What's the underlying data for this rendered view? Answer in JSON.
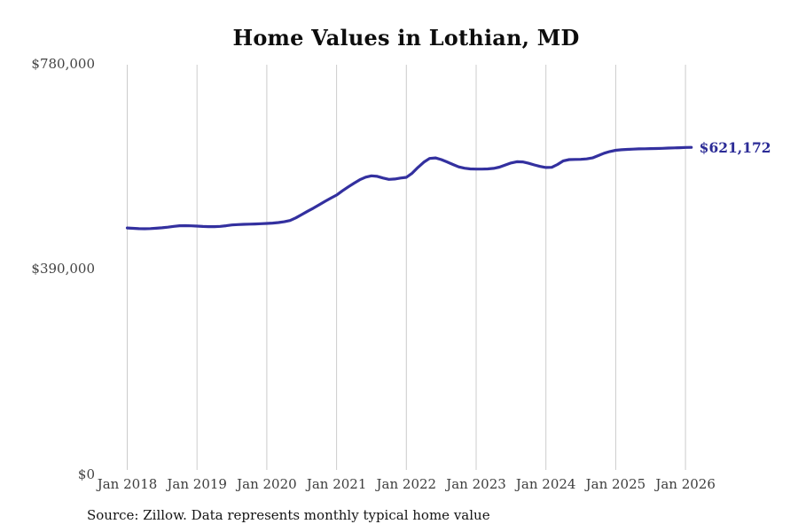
{
  "page": {
    "background_color": "#ffffff"
  },
  "colors": {
    "line": "#33309f",
    "end_label": "#2b2b96",
    "gridline": "#cccccc",
    "axis_text": "#3d3d3d",
    "title_text": "#0d0d0d"
  },
  "chart_data": {
    "type": "line",
    "title": "Home Values in Lothian, MD",
    "xlabel": "",
    "ylabel": "",
    "ylim": [
      0,
      780000
    ],
    "grid": "vertical-only",
    "legend": "none",
    "x_tick_labels": [
      "Jan 2018",
      "Jan 2019",
      "Jan 2020",
      "Jan 2021",
      "Jan 2022",
      "Jan 2023",
      "Jan 2024",
      "Jan 2025",
      "Jan 2026"
    ],
    "y_ticks": [
      {
        "label": "$780,000",
        "value": 780000
      },
      {
        "label": "$390,000",
        "value": 390000
      },
      {
        "label": "$0",
        "value": 0
      }
    ],
    "end_label": "$621,172",
    "end_value": 621172,
    "series": [
      {
        "name": "Monthly typical home value",
        "start_month": "2018-01",
        "end_month": "2026-02",
        "interval": "monthly",
        "values": [
          467800,
          467100,
          466500,
          466300,
          466700,
          467300,
          468100,
          469300,
          470800,
          472000,
          472300,
          471900,
          471300,
          470700,
          470300,
          470300,
          470900,
          472000,
          473500,
          474300,
          474800,
          475000,
          475500,
          476000,
          476400,
          477100,
          478100,
          479700,
          482000,
          487000,
          493300,
          499500,
          505500,
          511800,
          518500,
          524500,
          530400,
          538500,
          546000,
          553000,
          559500,
          564500,
          567000,
          566000,
          562700,
          560200,
          561000,
          562800,
          564100,
          572000,
          583000,
          593000,
          600000,
          601000,
          597900,
          593500,
          588500,
          584000,
          581500,
          580200,
          579800,
          579800,
          580200,
          581200,
          583500,
          587500,
          591500,
          593800,
          593500,
          591000,
          587800,
          584800,
          582800,
          583200,
          588500,
          595500,
          597900,
          598200,
          598400,
          599200,
          601000,
          605500,
          610000,
          613200,
          615500,
          616500,
          617200,
          617800,
          618200,
          618500,
          618800,
          619000,
          619300,
          619700,
          620100,
          620500,
          620900,
          621172
        ]
      }
    ]
  },
  "footer": {
    "source": "Source: Zillow. Data represents monthly typical home value"
  }
}
